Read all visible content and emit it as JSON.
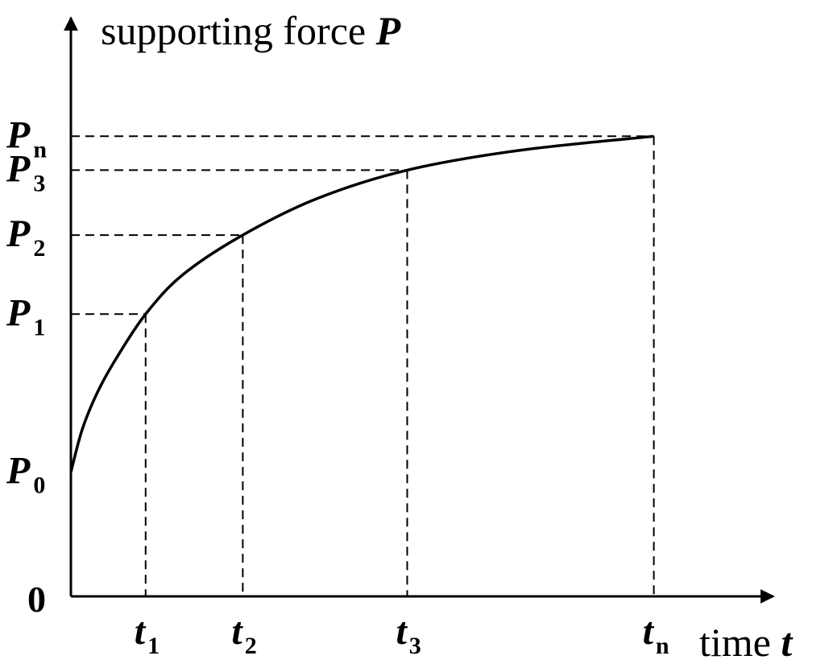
{
  "chart_data": {
    "type": "line",
    "ylabel_text": "supporting force ",
    "ylabel_symbol": "P",
    "xlabel_text": "time ",
    "xlabel_symbol": "t",
    "origin_label": "0",
    "grid": false,
    "y_ticks": [
      {
        "symbol": "P",
        "sub": "0",
        "value": 0.44
      },
      {
        "symbol": "P",
        "sub": "1",
        "value": 1.0
      },
      {
        "symbol": "P",
        "sub": "2",
        "value": 1.28
      },
      {
        "symbol": "P",
        "sub": "3",
        "value": 1.51
      },
      {
        "symbol": "P",
        "sub": "n",
        "value": 1.63
      }
    ],
    "x_ticks": [
      {
        "symbol": "t",
        "sub": "1",
        "value": 1.0
      },
      {
        "symbol": "t",
        "sub": "2",
        "value": 2.3
      },
      {
        "symbol": "t",
        "sub": "3",
        "value": 4.5
      },
      {
        "symbol": "t",
        "sub": "n",
        "value": 7.8
      }
    ],
    "series": [
      {
        "x": [
          0,
          0.15,
          0.35,
          0.6,
          1.0,
          1.5,
          2.3,
          3.3,
          4.5,
          6.0,
          7.8
        ],
        "y": [
          0.44,
          0.59,
          0.72,
          0.84,
          1.0,
          1.14,
          1.28,
          1.41,
          1.51,
          1.58,
          1.63
        ]
      }
    ],
    "xlim": [
      0,
      9.4
    ],
    "ylim": [
      0,
      2.05
    ]
  }
}
